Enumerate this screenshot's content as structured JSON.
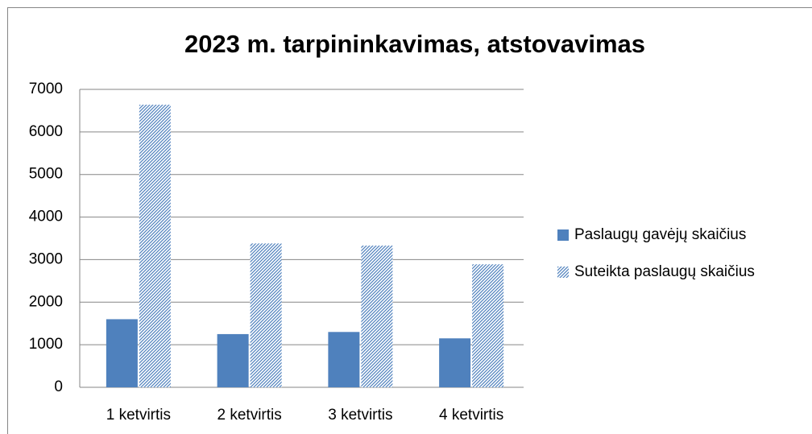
{
  "chart_data": {
    "type": "bar",
    "title": "2023 m. tarpininkavimas, atstovavimas",
    "categories": [
      "1 ketvirtis",
      "2 ketvirtis",
      "3 ketvirtis",
      "4 ketvirtis"
    ],
    "series": [
      {
        "name": "Paslaugų gavėjų skaičius",
        "color": "#4f81bd",
        "values": [
          1600,
          1250,
          1300,
          1150
        ]
      },
      {
        "name": "Suteikta paslaugų skaičius",
        "color": "#4f81bd",
        "pattern": "hatch",
        "values": [
          6640,
          3380,
          3330,
          2890
        ]
      }
    ],
    "ylim": [
      0,
      7000
    ],
    "yticks": [
      0,
      1000,
      2000,
      3000,
      4000,
      5000,
      6000,
      7000
    ],
    "grid": true,
    "legend": "right"
  }
}
